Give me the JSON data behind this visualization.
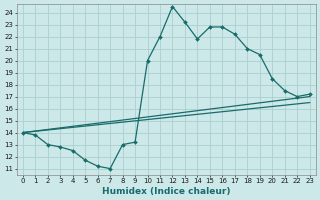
{
  "xlabel": "Humidex (Indice chaleur)",
  "ylabel": "",
  "xlim": [
    -0.5,
    23.5
  ],
  "ylim": [
    10.5,
    24.7
  ],
  "xticks": [
    0,
    1,
    2,
    3,
    4,
    5,
    6,
    7,
    8,
    9,
    10,
    11,
    12,
    13,
    14,
    15,
    16,
    17,
    18,
    19,
    20,
    21,
    22,
    23
  ],
  "yticks": [
    11,
    12,
    13,
    14,
    15,
    16,
    17,
    18,
    19,
    20,
    21,
    22,
    23,
    24
  ],
  "bg_color": "#cce8e8",
  "line_color": "#1a6b6b",
  "grid_color": "#aacfcf",
  "line1_x": [
    0,
    1,
    2,
    3,
    4,
    5,
    6,
    7,
    8,
    9,
    10,
    11,
    12,
    13,
    14,
    15,
    16,
    17,
    18,
    19,
    20,
    21,
    22,
    23
  ],
  "line1_y": [
    14.0,
    13.8,
    13.0,
    12.8,
    12.5,
    11.7,
    11.2,
    11.0,
    13.0,
    13.2,
    20.0,
    22.0,
    24.5,
    23.2,
    21.8,
    22.8,
    22.8,
    22.2,
    21.0,
    20.5,
    18.5,
    17.5,
    17.0,
    17.2
  ],
  "line2_x": [
    0,
    23
  ],
  "line2_y": [
    14.0,
    17.0
  ],
  "line3_x": [
    0,
    23
  ],
  "line3_y": [
    14.0,
    16.5
  ]
}
